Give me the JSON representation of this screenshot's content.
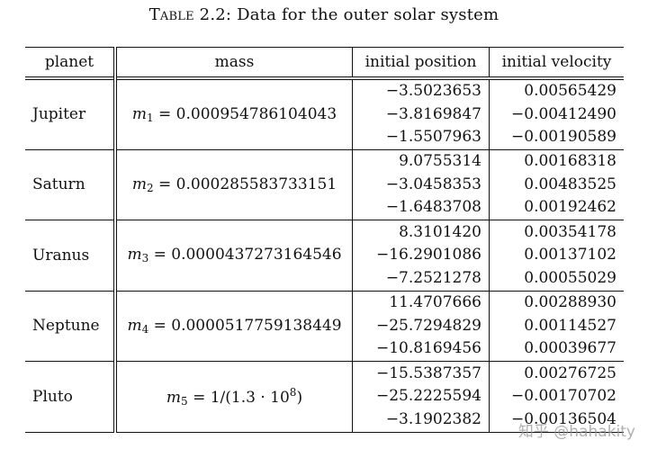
{
  "caption": {
    "label": "Table 2.2:",
    "text": "Data for the outer solar system"
  },
  "headers": {
    "planet": "planet",
    "mass": "mass",
    "position": "initial position",
    "velocity": "initial velocity"
  },
  "rows": [
    {
      "planet": "Jupiter",
      "mass_var": "m",
      "mass_sub": "1",
      "mass_value": " = 0.000954786104043",
      "mass_sup": "",
      "position": [
        "−3.5023653",
        "−3.8169847",
        "−1.5507963"
      ],
      "velocity": [
        "0.00565429",
        "−0.00412490",
        "−0.00190589"
      ]
    },
    {
      "planet": "Saturn",
      "mass_var": "m",
      "mass_sub": "2",
      "mass_value": " = 0.000285583733151",
      "mass_sup": "",
      "position": [
        "9.0755314",
        "−3.0458353",
        "−1.6483708"
      ],
      "velocity": [
        "0.00168318",
        "0.00483525",
        "0.00192462"
      ]
    },
    {
      "planet": "Uranus",
      "mass_var": "m",
      "mass_sub": "3",
      "mass_value": " = 0.0000437273164546",
      "mass_sup": "",
      "position": [
        "8.3101420",
        "−16.2901086",
        "−7.2521278"
      ],
      "velocity": [
        "0.00354178",
        "0.00137102",
        "0.00055029"
      ]
    },
    {
      "planet": "Neptune",
      "mass_var": "m",
      "mass_sub": "4",
      "mass_value": " = 0.0000517759138449",
      "mass_sup": "",
      "position": [
        "11.4707666",
        "−25.7294829",
        "−10.8169456"
      ],
      "velocity": [
        "0.00288930",
        "0.00114527",
        "0.00039677"
      ]
    },
    {
      "planet": "Pluto",
      "mass_var": "m",
      "mass_sub": "5",
      "mass_value": " = 1/(1.3 · 10",
      "mass_sup": "8",
      "mass_tail": ")",
      "position": [
        "−15.5387357",
        "−25.2225594",
        "−3.1902382"
      ],
      "velocity": [
        "0.00276725",
        "−0.00170702",
        "−0.00136504"
      ]
    }
  ],
  "watermark": "知乎 @hahakity"
}
